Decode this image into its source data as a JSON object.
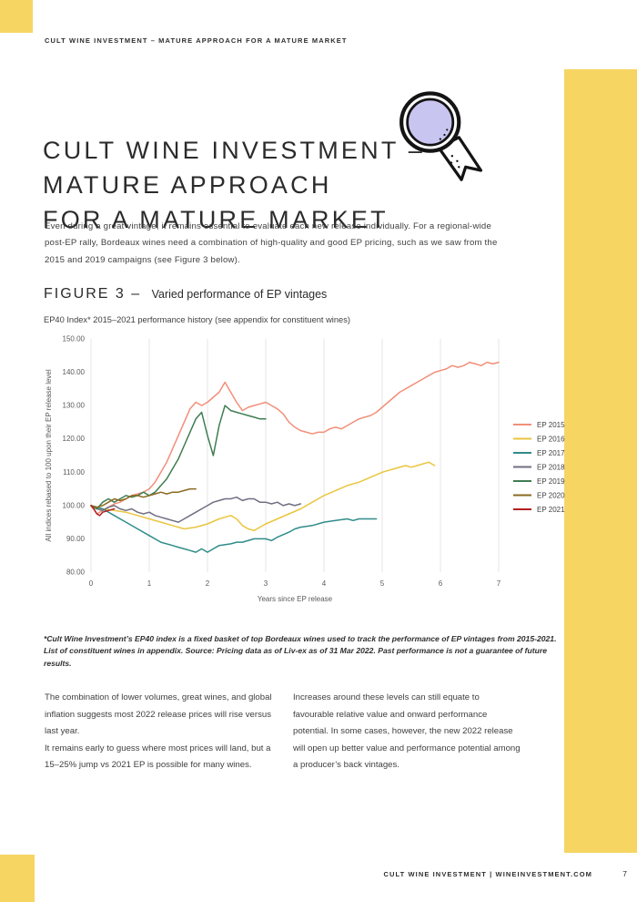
{
  "page": {
    "header": "CULT WINE INVESTMENT – MATURE APPROACH FOR A MATURE MARKET",
    "title_lines": [
      "CULT WINE INVESTMENT –",
      "MATURE APPROACH",
      "FOR A MATURE MARKET"
    ],
    "intro": "Even during a great vintage, it remains essential to evaluate each new release individually. For a regional-wide post-EP rally, Bordeaux wines need a combination of high-quality and good EP pricing, such as we saw from the 2015 and 2019 campaigns (see Figure 3 below).",
    "figure_label": "FIGURE 3 –",
    "figure_title": "Varied performance of EP vintages",
    "figure_subtitle": "EP40 Index* 2015–2021 performance history (see appendix for constituent wines)",
    "footnote": "*Cult Wine Investment’s EP40 index is a fixed basket of top Bordeaux wines used to track the performance of EP vintages from 2015-2021. List of constituent wines in appendix. Source: Pricing data as of Liv-ex as of 31 Mar 2022. Past performance is not a guarantee of future results.",
    "col_left": "The combination of lower volumes, great wines, and global inflation suggests most 2022 release prices will rise versus last year.\nIt remains early to guess where most prices will land, but a 15–25% jump vs 2021 EP is possible for many wines.",
    "col_right": "Increases around these levels can still equate to favourable relative value and onward performance potential. In some cases, however, the new 2022 release will open up better value and performance potential among a producer’s back vintages.",
    "footer": "CULT WINE INVESTMENT  |  WINEINVESTMENT.COM",
    "page_number": "7",
    "accent_yellow": "#F6D563",
    "ribbon_icon": "award-rosette",
    "ribbon_color": "#C9C5F1"
  },
  "chart_data": {
    "type": "line",
    "title": "Varied performance of EP vintages",
    "subtitle": "EP40 Index* 2015–2021 performance history (see appendix for constituent wines)",
    "xlabel": "Years since EP release",
    "ylabel": "All indices rebased to 100 upon their EP release level",
    "xlim": [
      0,
      7
    ],
    "ylim": [
      80,
      150
    ],
    "x_ticks": [
      0,
      1,
      2,
      3,
      4,
      5,
      6,
      7
    ],
    "y_ticks": [
      "80.00",
      "90.00",
      "100.00",
      "110.00",
      "120.00",
      "130.00",
      "140.00",
      "150.00"
    ],
    "grid": "vertical",
    "legend_position": "right",
    "series": [
      {
        "name": "EP 2015",
        "color": "#F28F79",
        "points": [
          [
            0,
            100
          ],
          [
            0.1,
            97.5
          ],
          [
            0.2,
            98.5
          ],
          [
            0.3,
            99.5
          ],
          [
            0.4,
            100.5
          ],
          [
            0.5,
            101
          ],
          [
            0.6,
            102
          ],
          [
            0.7,
            103
          ],
          [
            0.8,
            103.5
          ],
          [
            0.9,
            104
          ],
          [
            1,
            105
          ],
          [
            1.1,
            107
          ],
          [
            1.2,
            110
          ],
          [
            1.3,
            113
          ],
          [
            1.4,
            117
          ],
          [
            1.5,
            121
          ],
          [
            1.6,
            125
          ],
          [
            1.7,
            129
          ],
          [
            1.8,
            131
          ],
          [
            1.9,
            130
          ],
          [
            2,
            131
          ],
          [
            2.1,
            132.5
          ],
          [
            2.2,
            134
          ],
          [
            2.3,
            137
          ],
          [
            2.4,
            134
          ],
          [
            2.5,
            131
          ],
          [
            2.6,
            128.5
          ],
          [
            2.7,
            129.5
          ],
          [
            2.8,
            130
          ],
          [
            2.9,
            130.5
          ],
          [
            3,
            131
          ],
          [
            3.1,
            130
          ],
          [
            3.2,
            129
          ],
          [
            3.3,
            127.5
          ],
          [
            3.4,
            125
          ],
          [
            3.5,
            123.5
          ],
          [
            3.6,
            122.5
          ],
          [
            3.7,
            122
          ],
          [
            3.8,
            121.5
          ],
          [
            3.9,
            122
          ],
          [
            4,
            122
          ],
          [
            4.1,
            123
          ],
          [
            4.2,
            123.5
          ],
          [
            4.3,
            123
          ],
          [
            4.4,
            124
          ],
          [
            4.5,
            125
          ],
          [
            4.6,
            126
          ],
          [
            4.7,
            126.5
          ],
          [
            4.8,
            127
          ],
          [
            4.9,
            128
          ],
          [
            5,
            129.5
          ],
          [
            5.1,
            131
          ],
          [
            5.2,
            132.5
          ],
          [
            5.3,
            134
          ],
          [
            5.4,
            135
          ],
          [
            5.5,
            136
          ],
          [
            5.6,
            137
          ],
          [
            5.7,
            138
          ],
          [
            5.8,
            139
          ],
          [
            5.9,
            140
          ],
          [
            6,
            140.5
          ],
          [
            6.1,
            141
          ],
          [
            6.2,
            142
          ],
          [
            6.3,
            141.5
          ],
          [
            6.4,
            142
          ],
          [
            6.5,
            143
          ],
          [
            6.6,
            142.5
          ],
          [
            6.7,
            142
          ],
          [
            6.8,
            143
          ],
          [
            6.9,
            142.5
          ],
          [
            7,
            143
          ]
        ]
      },
      {
        "name": "EP 2016",
        "color": "#E9C63F",
        "points": [
          [
            0,
            100
          ],
          [
            0.2,
            99
          ],
          [
            0.4,
            98.5
          ],
          [
            0.6,
            98
          ],
          [
            0.8,
            97
          ],
          [
            1,
            96
          ],
          [
            1.2,
            95
          ],
          [
            1.4,
            94
          ],
          [
            1.5,
            93.5
          ],
          [
            1.6,
            93
          ],
          [
            1.8,
            93.5
          ],
          [
            2,
            94.5
          ],
          [
            2.2,
            96
          ],
          [
            2.4,
            97
          ],
          [
            2.5,
            96
          ],
          [
            2.6,
            94
          ],
          [
            2.7,
            93
          ],
          [
            2.8,
            92.5
          ],
          [
            2.9,
            93.5
          ],
          [
            3,
            94.5
          ],
          [
            3.2,
            96
          ],
          [
            3.4,
            97.5
          ],
          [
            3.6,
            99
          ],
          [
            3.8,
            101
          ],
          [
            4,
            103
          ],
          [
            4.2,
            104.5
          ],
          [
            4.4,
            106
          ],
          [
            4.6,
            107
          ],
          [
            4.8,
            108.5
          ],
          [
            5,
            110
          ],
          [
            5.2,
            111
          ],
          [
            5.4,
            112
          ],
          [
            5.5,
            111.5
          ],
          [
            5.6,
            112
          ],
          [
            5.7,
            112.5
          ],
          [
            5.8,
            113
          ],
          [
            5.9,
            112
          ]
        ]
      },
      {
        "name": "EP 2017",
        "color": "#2F8C8A",
        "points": [
          [
            0,
            100
          ],
          [
            0.2,
            99
          ],
          [
            0.4,
            97
          ],
          [
            0.6,
            95
          ],
          [
            0.8,
            93
          ],
          [
            1,
            91
          ],
          [
            1.2,
            89
          ],
          [
            1.4,
            88
          ],
          [
            1.5,
            87.5
          ],
          [
            1.6,
            87
          ],
          [
            1.7,
            86.5
          ],
          [
            1.8,
            86
          ],
          [
            1.9,
            87
          ],
          [
            2,
            86
          ],
          [
            2.1,
            87
          ],
          [
            2.2,
            88
          ],
          [
            2.4,
            88.5
          ],
          [
            2.5,
            89
          ],
          [
            2.6,
            89
          ],
          [
            2.8,
            90
          ],
          [
            3,
            90
          ],
          [
            3.1,
            89.5
          ],
          [
            3.2,
            90.5
          ],
          [
            3.4,
            92
          ],
          [
            3.5,
            93
          ],
          [
            3.6,
            93.5
          ],
          [
            3.8,
            94
          ],
          [
            4,
            95
          ],
          [
            4.2,
            95.5
          ],
          [
            4.4,
            96
          ],
          [
            4.5,
            95.5
          ],
          [
            4.6,
            96
          ],
          [
            4.8,
            96
          ],
          [
            4.9,
            96
          ]
        ]
      },
      {
        "name": "EP 2018",
        "color": "#6F6F82",
        "points": [
          [
            0,
            100
          ],
          [
            0.1,
            99
          ],
          [
            0.2,
            98.5
          ],
          [
            0.3,
            99.5
          ],
          [
            0.4,
            100
          ],
          [
            0.5,
            99
          ],
          [
            0.6,
            98.5
          ],
          [
            0.7,
            99
          ],
          [
            0.8,
            98
          ],
          [
            0.9,
            97.5
          ],
          [
            1,
            98
          ],
          [
            1.1,
            97
          ],
          [
            1.2,
            96.5
          ],
          [
            1.3,
            96
          ],
          [
            1.4,
            95.5
          ],
          [
            1.5,
            95
          ],
          [
            1.6,
            96
          ],
          [
            1.7,
            97
          ],
          [
            1.8,
            98
          ],
          [
            1.9,
            99
          ],
          [
            2,
            100
          ],
          [
            2.1,
            101
          ],
          [
            2.2,
            101.5
          ],
          [
            2.3,
            102
          ],
          [
            2.4,
            102
          ],
          [
            2.5,
            102.5
          ],
          [
            2.6,
            101.5
          ],
          [
            2.7,
            102
          ],
          [
            2.8,
            102
          ],
          [
            2.9,
            101
          ],
          [
            3,
            101
          ],
          [
            3.1,
            100.5
          ],
          [
            3.2,
            101
          ],
          [
            3.3,
            100
          ],
          [
            3.4,
            100.5
          ],
          [
            3.5,
            100
          ],
          [
            3.6,
            100.5
          ]
        ]
      },
      {
        "name": "EP 2019",
        "color": "#3F7D52",
        "points": [
          [
            0,
            100
          ],
          [
            0.1,
            99
          ],
          [
            0.2,
            101
          ],
          [
            0.3,
            102
          ],
          [
            0.4,
            101
          ],
          [
            0.5,
            102
          ],
          [
            0.6,
            103
          ],
          [
            0.7,
            102.5
          ],
          [
            0.8,
            103
          ],
          [
            0.9,
            104
          ],
          [
            1,
            103
          ],
          [
            1.1,
            104
          ],
          [
            1.2,
            106
          ],
          [
            1.3,
            108
          ],
          [
            1.4,
            111
          ],
          [
            1.5,
            114
          ],
          [
            1.6,
            118
          ],
          [
            1.7,
            122
          ],
          [
            1.8,
            126
          ],
          [
            1.9,
            128
          ],
          [
            2,
            121
          ],
          [
            2.1,
            115
          ],
          [
            2.2,
            124
          ],
          [
            2.3,
            130
          ],
          [
            2.4,
            128.5
          ],
          [
            2.5,
            128
          ],
          [
            2.6,
            127.5
          ],
          [
            2.7,
            127
          ],
          [
            2.8,
            126.5
          ],
          [
            2.9,
            126
          ],
          [
            3,
            126
          ]
        ]
      },
      {
        "name": "EP 2020",
        "color": "#8A6A1F",
        "points": [
          [
            0,
            100
          ],
          [
            0.1,
            99.5
          ],
          [
            0.2,
            100
          ],
          [
            0.3,
            101
          ],
          [
            0.4,
            102
          ],
          [
            0.5,
            101.5
          ],
          [
            0.6,
            102
          ],
          [
            0.7,
            103
          ],
          [
            0.8,
            103
          ],
          [
            0.9,
            102.5
          ],
          [
            1,
            103
          ],
          [
            1.1,
            103.5
          ],
          [
            1.2,
            104
          ],
          [
            1.3,
            103.5
          ],
          [
            1.4,
            104
          ],
          [
            1.5,
            104
          ],
          [
            1.6,
            104.5
          ],
          [
            1.7,
            105
          ],
          [
            1.8,
            105
          ]
        ]
      },
      {
        "name": "EP 2021",
        "color": "#B51F1F",
        "points": [
          [
            0,
            100
          ],
          [
            0.05,
            99
          ],
          [
            0.1,
            97.5
          ],
          [
            0.15,
            97
          ],
          [
            0.2,
            98
          ],
          [
            0.3,
            98.5
          ],
          [
            0.4,
            99
          ]
        ]
      }
    ]
  }
}
